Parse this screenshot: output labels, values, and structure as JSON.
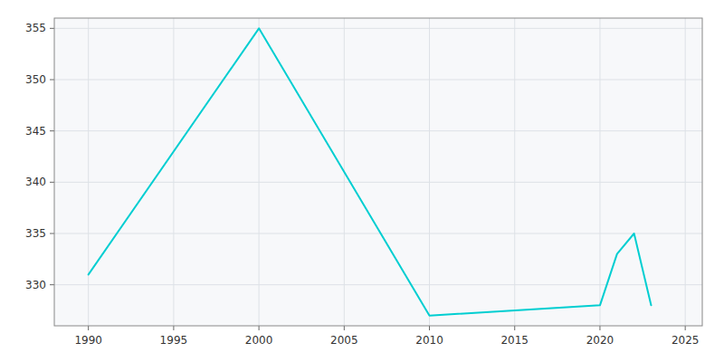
{
  "chart_data": {
    "type": "line",
    "x": [
      1990,
      2000,
      2010,
      2020,
      2021,
      2022,
      2023
    ],
    "values": [
      331,
      355,
      327,
      328,
      333,
      335,
      328
    ],
    "color": "#00CED1",
    "xlim": [
      1988,
      2026
    ],
    "ylim": [
      326,
      356
    ],
    "xticks": [
      1990,
      1995,
      2000,
      2005,
      2010,
      2015,
      2020,
      2025
    ],
    "yticks": [
      330,
      335,
      340,
      345,
      350,
      355
    ],
    "grid": true
  }
}
